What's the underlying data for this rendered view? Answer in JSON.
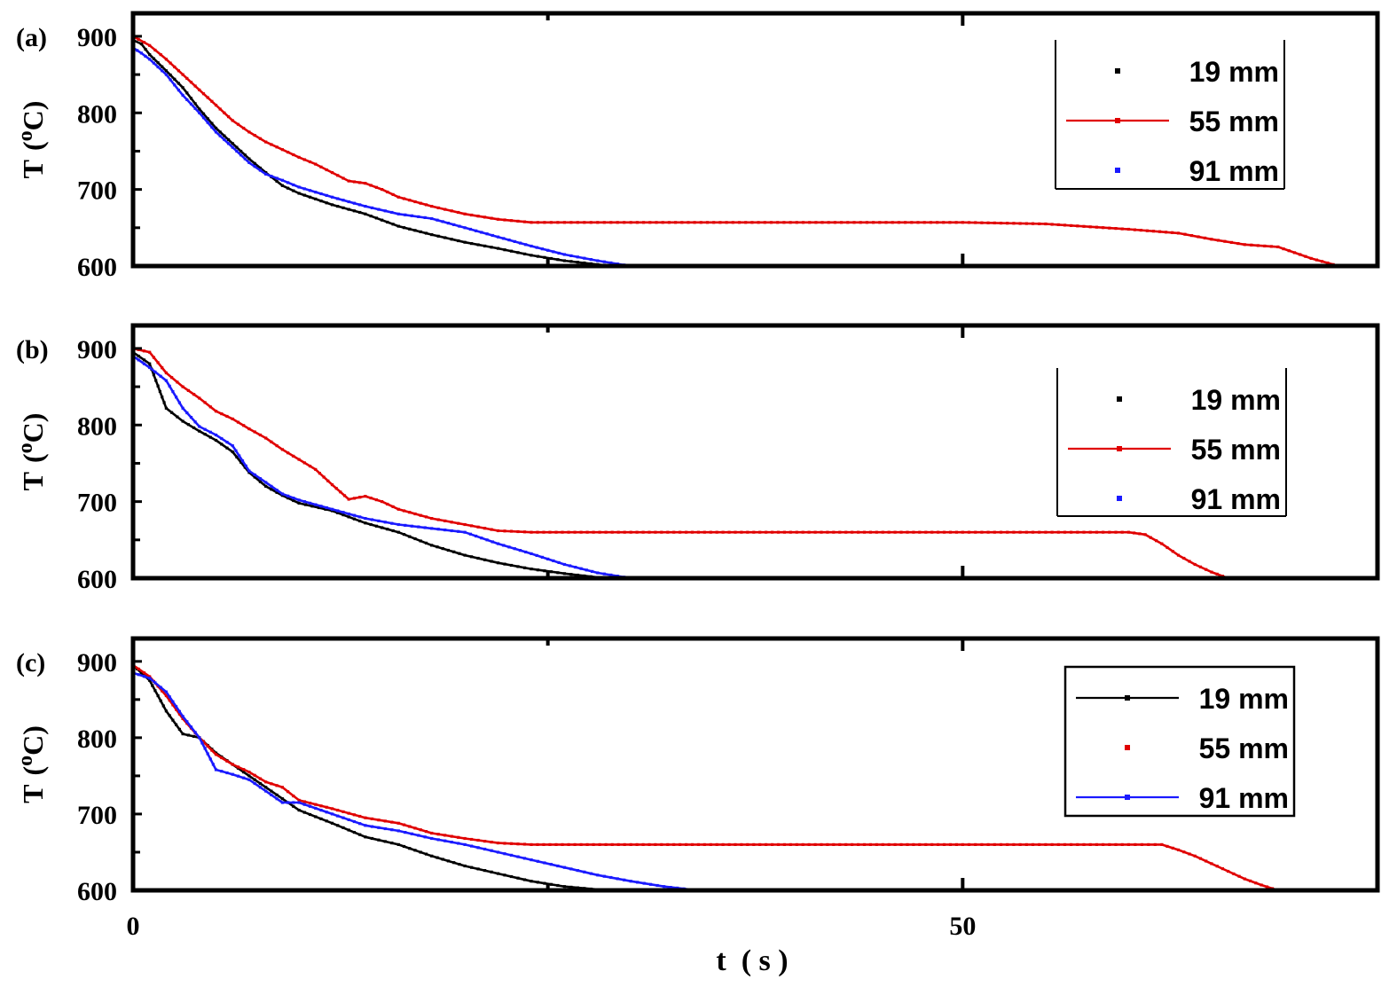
{
  "chart_data": [
    {
      "type": "line",
      "panel_label": "(a)",
      "ylabel": "T (°C)",
      "ylabel_main": "T",
      "ylabel_unit_open": "(",
      "ylabel_unit_sup": "o",
      "ylabel_unit_close": "C)",
      "xlim": [
        0,
        75
      ],
      "ylim": [
        600,
        930
      ],
      "yticks": [
        "900",
        "800",
        "700",
        "600"
      ],
      "ytick_values": [
        900,
        800,
        700,
        600
      ],
      "legend_position": "top-right",
      "legend_frame": "left-bottom",
      "series": [
        {
          "name": "19 mm",
          "color": "#000000",
          "legend_line": false,
          "x": [
            0,
            0.5,
            1,
            2,
            3,
            4,
            5,
            6,
            7,
            8,
            9,
            10,
            12,
            14,
            16,
            18,
            20,
            22,
            24,
            26,
            28,
            30
          ],
          "y": [
            895,
            890,
            876,
            855,
            833,
            805,
            780,
            760,
            740,
            722,
            705,
            695,
            680,
            668,
            652,
            641,
            631,
            623,
            614,
            607,
            602,
            598
          ]
        },
        {
          "name": "55 mm",
          "color": "#e00000",
          "legend_line": true,
          "x": [
            0,
            1,
            2,
            3,
            4,
            5,
            6,
            7,
            8,
            9,
            10,
            11,
            12,
            13,
            14,
            15,
            16,
            18,
            20,
            22,
            24,
            26,
            28,
            30,
            35,
            40,
            45,
            50,
            55,
            60,
            63,
            65,
            67,
            69,
            71,
            73
          ],
          "y": [
            900,
            888,
            870,
            850,
            830,
            810,
            790,
            775,
            762,
            752,
            742,
            733,
            722,
            711,
            708,
            700,
            690,
            678,
            668,
            661,
            657,
            657,
            657,
            657,
            657,
            657,
            657,
            657,
            655,
            648,
            643,
            635,
            628,
            625,
            610,
            598
          ]
        },
        {
          "name": "91 mm",
          "color": "#1a1aff",
          "legend_line": false,
          "x": [
            0,
            0.5,
            1,
            2,
            3,
            4,
            5,
            6,
            7,
            8,
            9,
            10,
            12,
            14,
            16,
            18,
            20,
            22,
            24,
            26,
            28,
            30,
            32,
            33
          ],
          "y": [
            885,
            878,
            870,
            850,
            823,
            800,
            775,
            755,
            735,
            720,
            712,
            703,
            690,
            678,
            668,
            662,
            650,
            638,
            626,
            615,
            607,
            600,
            597,
            598
          ]
        }
      ]
    },
    {
      "type": "line",
      "panel_label": "(b)",
      "ylabel": "T (°C)",
      "ylabel_main": "T",
      "ylabel_unit_open": "(",
      "ylabel_unit_sup": "o",
      "ylabel_unit_close": "C)",
      "xlim": [
        0,
        75
      ],
      "ylim": [
        600,
        930
      ],
      "yticks": [
        "900",
        "800",
        "700",
        "600"
      ],
      "ytick_values": [
        900,
        800,
        700,
        600
      ],
      "legend_position": "top-right",
      "legend_frame": "left-bottom",
      "series": [
        {
          "name": "19 mm",
          "color": "#000000",
          "legend_line": false,
          "x": [
            0,
            1,
            2,
            3,
            4,
            5,
            6,
            7,
            8,
            9,
            10,
            12,
            14,
            16,
            18,
            20,
            22,
            24,
            26,
            28,
            30
          ],
          "y": [
            895,
            880,
            822,
            805,
            792,
            780,
            765,
            738,
            720,
            708,
            698,
            688,
            672,
            660,
            643,
            630,
            620,
            612,
            606,
            601,
            598
          ]
        },
        {
          "name": "55 mm",
          "color": "#e00000",
          "legend_line": true,
          "x": [
            0,
            1,
            2,
            3,
            4,
            5,
            6,
            7,
            8,
            9,
            10,
            11,
            12,
            13,
            14,
            15,
            16,
            18,
            20,
            22,
            24,
            30,
            40,
            50,
            55,
            60,
            61,
            62,
            63,
            64,
            65,
            66
          ],
          "y": [
            900,
            895,
            868,
            850,
            835,
            818,
            808,
            795,
            783,
            768,
            755,
            742,
            722,
            703,
            707,
            700,
            690,
            678,
            670,
            662,
            660,
            660,
            660,
            660,
            660,
            660,
            657,
            645,
            630,
            618,
            608,
            600
          ]
        },
        {
          "name": "91 mm",
          "color": "#1a1aff",
          "legend_line": false,
          "x": [
            0,
            1,
            2,
            3,
            4,
            5,
            6,
            7,
            8,
            9,
            10,
            12,
            14,
            16,
            18,
            20,
            22,
            24,
            26,
            28,
            30,
            32,
            33
          ],
          "y": [
            890,
            875,
            858,
            822,
            798,
            787,
            773,
            740,
            725,
            710,
            702,
            690,
            678,
            670,
            665,
            660,
            645,
            632,
            618,
            607,
            600,
            598,
            598
          ]
        }
      ]
    },
    {
      "type": "line",
      "panel_label": "(c)",
      "ylabel": "T (°C)",
      "ylabel_main": "T",
      "ylabel_unit_open": "(",
      "ylabel_unit_sup": "o",
      "ylabel_unit_close": "C)",
      "xlabel": "t (s)",
      "xlabel_text": "t  ( s )",
      "xlim": [
        0,
        75
      ],
      "ylim": [
        600,
        930
      ],
      "xticks": [
        "0",
        "50"
      ],
      "xtick_values": [
        0,
        50
      ],
      "yticks": [
        "900",
        "800",
        "700",
        "600"
      ],
      "ytick_values": [
        900,
        800,
        700,
        600
      ],
      "legend_position": "top-right",
      "legend_frame": "full",
      "series": [
        {
          "name": "19 mm",
          "color": "#000000",
          "legend_line": true,
          "x": [
            0,
            1,
            2,
            3,
            4,
            5,
            6,
            7,
            8,
            9,
            10,
            12,
            14,
            16,
            18,
            20,
            22,
            24,
            26,
            28,
            30
          ],
          "y": [
            895,
            875,
            835,
            805,
            800,
            780,
            765,
            750,
            735,
            720,
            705,
            688,
            670,
            660,
            645,
            632,
            622,
            612,
            605,
            601,
            598
          ]
        },
        {
          "name": "55 mm",
          "color": "#e00000",
          "legend_line": false,
          "x": [
            0,
            1,
            2,
            3,
            4,
            5,
            6,
            7,
            8,
            9,
            10,
            12,
            14,
            16,
            18,
            20,
            22,
            24,
            30,
            40,
            50,
            55,
            60,
            62,
            63,
            64,
            65,
            66,
            67,
            68,
            69,
            70
          ],
          "y": [
            895,
            880,
            855,
            825,
            800,
            778,
            765,
            755,
            742,
            735,
            718,
            707,
            695,
            688,
            675,
            668,
            662,
            660,
            660,
            660,
            660,
            660,
            660,
            660,
            653,
            645,
            635,
            625,
            615,
            607,
            600,
            598
          ]
        },
        {
          "name": "91 mm",
          "color": "#1a1aff",
          "legend_line": true,
          "x": [
            0,
            1,
            2,
            3,
            4,
            5,
            6,
            7,
            8,
            9,
            10,
            12,
            14,
            16,
            18,
            20,
            22,
            24,
            26,
            28,
            30,
            32,
            34,
            35
          ],
          "y": [
            885,
            878,
            860,
            828,
            800,
            758,
            752,
            745,
            730,
            715,
            715,
            700,
            685,
            678,
            668,
            660,
            650,
            640,
            630,
            620,
            612,
            605,
            600,
            598
          ]
        }
      ]
    }
  ]
}
